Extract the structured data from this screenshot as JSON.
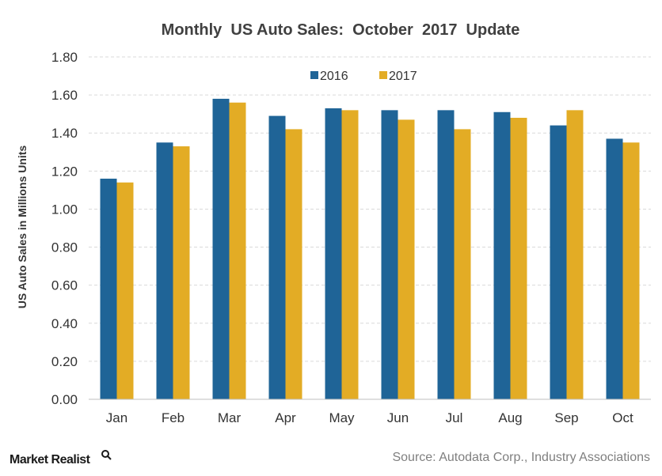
{
  "chart_data": {
    "type": "bar",
    "title": "Monthly  US Auto Sales:  October  2017  Update",
    "ylabel": "US Auto Sales in Millions Units",
    "xlabel": "",
    "categories": [
      "Jan",
      "Feb",
      "Mar",
      "Apr",
      "May",
      "Jun",
      "Jul",
      "Aug",
      "Sep",
      "Oct"
    ],
    "series": [
      {
        "name": "2016",
        "color": "#1f6497",
        "values": [
          1.16,
          1.35,
          1.58,
          1.49,
          1.53,
          1.52,
          1.52,
          1.51,
          1.44,
          1.37
        ]
      },
      {
        "name": "2017",
        "color": "#e3ac25",
        "values": [
          1.14,
          1.33,
          1.56,
          1.42,
          1.52,
          1.47,
          1.42,
          1.48,
          1.52,
          1.35
        ]
      }
    ],
    "ylim": [
      0,
      1.8
    ],
    "yticks": [
      "0.00",
      "0.20",
      "0.40",
      "0.60",
      "0.80",
      "1.00",
      "1.20",
      "1.40",
      "1.60",
      "1.80"
    ],
    "grid": true,
    "legend_position": "top-center"
  },
  "footer": {
    "source": "Source: Autodata Corp., Industry Associations",
    "brand": "Market Realist"
  }
}
